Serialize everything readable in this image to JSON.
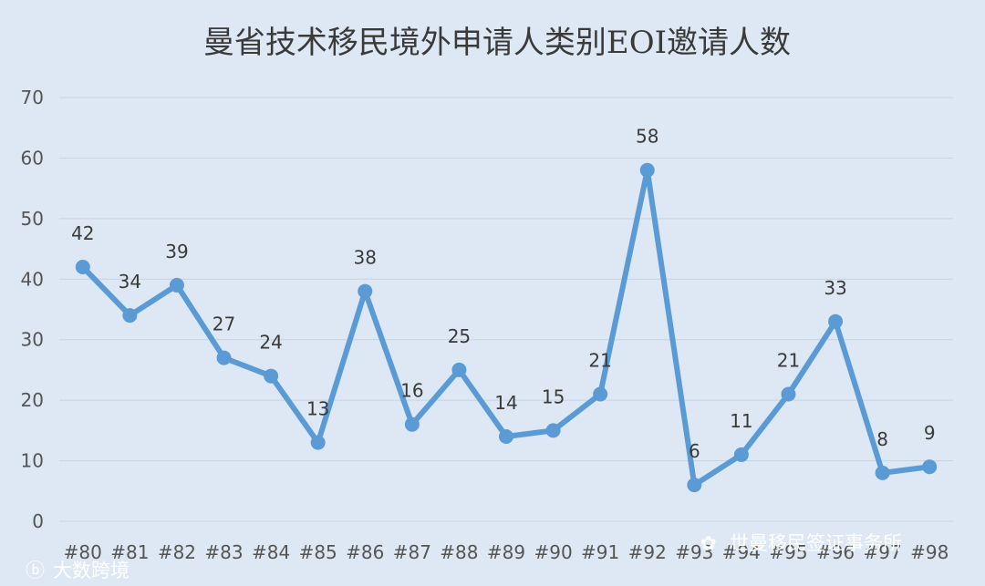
{
  "chart_data": {
    "type": "line",
    "title": "曼省技术移民境外申请人类别EOI邀请人数",
    "xlabel": "",
    "ylabel": "",
    "ylim": [
      0,
      70
    ],
    "y_ticks": [
      0,
      10,
      20,
      30,
      40,
      50,
      60,
      70
    ],
    "grid": true,
    "legend": "none",
    "categories": [
      "#80",
      "#81",
      "#82",
      "#83",
      "#84",
      "#85",
      "#86",
      "#87",
      "#88",
      "#89",
      "#90",
      "#91",
      "#92",
      "#93",
      "#94",
      "#95",
      "#96",
      "#97",
      "#98"
    ],
    "series": [
      {
        "values": [
          42,
          34,
          39,
          27,
          24,
          13,
          38,
          16,
          25,
          14,
          15,
          21,
          58,
          6,
          11,
          21,
          33,
          8,
          9
        ]
      }
    ],
    "colors": {
      "line": "#5b9bd5",
      "background": "#dde8f4",
      "grid": "#c9d3df"
    }
  },
  "watermarks": {
    "left": "大数跨境",
    "right": "世曼移民签证事务所"
  }
}
